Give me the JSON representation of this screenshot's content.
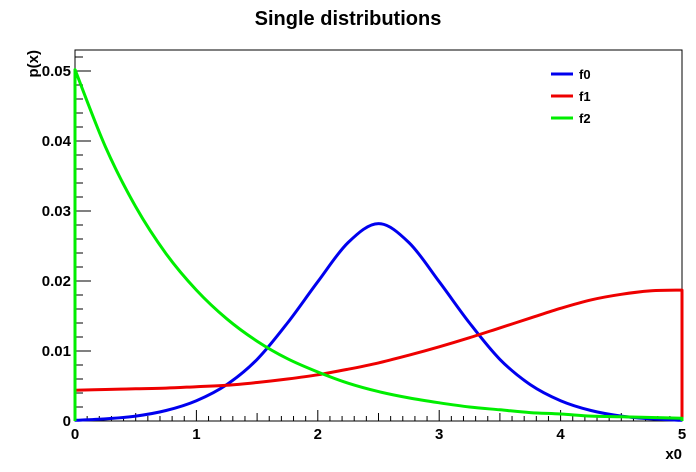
{
  "chart_data": {
    "type": "line",
    "title": "Single distributions",
    "xlabel": "x0",
    "ylabel": "p(x)",
    "xlim": [
      0,
      5
    ],
    "ylim": [
      0,
      0.053
    ],
    "x_ticks": [
      0,
      1,
      2,
      3,
      4,
      5
    ],
    "x_tick_labels": [
      "0",
      "1",
      "2",
      "3",
      "4",
      "5"
    ],
    "y_ticks": [
      0,
      0.01,
      0.02,
      0.03,
      0.04,
      0.05
    ],
    "y_tick_labels": [
      "0",
      "0.01",
      "0.02",
      "0.03",
      "0.04",
      "0.05"
    ],
    "legend_position": "top-right",
    "series": [
      {
        "name": "f0",
        "color": "#0000ee",
        "x": [
          0,
          0.25,
          0.5,
          0.75,
          1.0,
          1.25,
          1.5,
          1.75,
          2.0,
          2.25,
          2.5,
          2.75,
          3.0,
          3.25,
          3.5,
          3.75,
          4.0,
          4.25,
          4.5,
          4.75,
          5.0
        ],
        "y": [
          0.0001,
          0.0003,
          0.0007,
          0.0015,
          0.0029,
          0.0052,
          0.0088,
          0.014,
          0.0199,
          0.0255,
          0.0282,
          0.0255,
          0.0199,
          0.014,
          0.0088,
          0.0052,
          0.0029,
          0.0015,
          0.0007,
          0.0003,
          0.0001
        ]
      },
      {
        "name": "f1",
        "color": "#ee0000",
        "x": [
          0,
          0.25,
          0.5,
          0.75,
          1.0,
          1.25,
          1.5,
          1.75,
          2.0,
          2.25,
          2.5,
          2.75,
          3.0,
          3.25,
          3.5,
          3.75,
          4.0,
          4.25,
          4.5,
          4.75,
          5.0
        ],
        "y": [
          0.0044,
          0.0045,
          0.0046,
          0.0047,
          0.0049,
          0.0051,
          0.0055,
          0.006,
          0.0066,
          0.0074,
          0.0083,
          0.0094,
          0.0106,
          0.0119,
          0.0133,
          0.0147,
          0.0161,
          0.0173,
          0.0181,
          0.0186,
          0.0187
        ]
      },
      {
        "name": "f2",
        "color": "#00ee00",
        "x": [
          0,
          0.25,
          0.5,
          0.75,
          1.0,
          1.25,
          1.5,
          1.75,
          2.0,
          2.25,
          2.5,
          2.75,
          3.0,
          3.25,
          3.5,
          3.75,
          4.0,
          4.25,
          4.5,
          4.75,
          5.0
        ],
        "y": [
          0.0502,
          0.0392,
          0.0306,
          0.0239,
          0.0187,
          0.0146,
          0.0114,
          0.0089,
          0.007,
          0.0054,
          0.0042,
          0.0033,
          0.0026,
          0.002,
          0.0016,
          0.0012,
          0.001,
          0.0007,
          0.0006,
          0.0005,
          0.0004
        ]
      }
    ]
  }
}
